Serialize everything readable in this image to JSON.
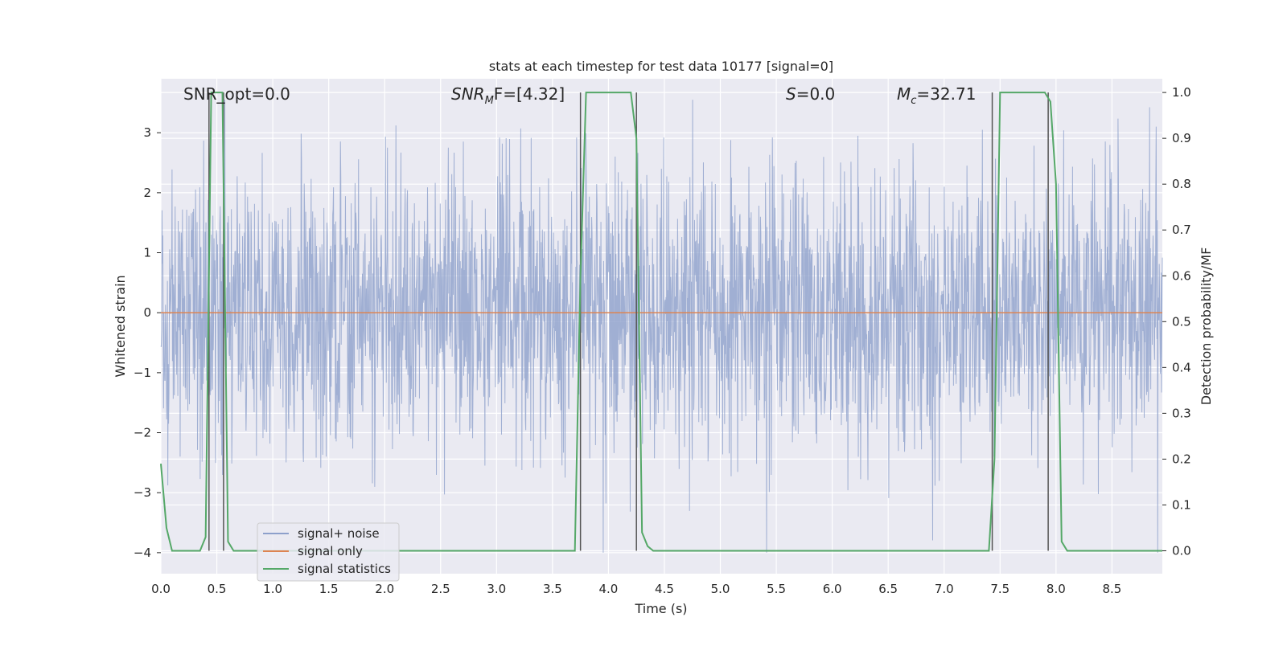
{
  "chart_data": {
    "type": "line",
    "title": "stats at each timestep for test data 10177 [signal=0]",
    "xlabel": "Time (s)",
    "ylabel_left": "Whitened strain",
    "ylabel_right": "Detection probability/MF",
    "xlim": [
      0.0,
      8.95
    ],
    "ylim_left": [
      -4.35,
      3.9
    ],
    "ylim_right": [
      -0.05,
      1.03
    ],
    "x_ticks": [
      "0.0",
      "0.5",
      "1.0",
      "1.5",
      "2.0",
      "2.5",
      "3.0",
      "3.5",
      "4.0",
      "4.5",
      "5.0",
      "5.5",
      "6.0",
      "6.5",
      "7.0",
      "7.5",
      "8.0",
      "8.5"
    ],
    "y_ticks_left": [
      "3",
      "2",
      "1",
      "0",
      "−1",
      "−2",
      "−3",
      "−4"
    ],
    "y_ticks_right": [
      "1.0",
      "0.9",
      "0.8",
      "0.7",
      "0.6",
      "0.5",
      "0.4",
      "0.3",
      "0.2",
      "0.1",
      "0.0"
    ],
    "grid": true,
    "legend_position": "lower-left",
    "annotations": {
      "snr_opt": "SNR_opt=0.0",
      "snr_mf_prefix": "SNR",
      "snr_mf_sub": "M",
      "snr_mf_suffix": "F=[4.32]",
      "s_prefix": "S",
      "s_suffix": "=0.0",
      "mc_prefix": "M",
      "mc_sub": "c",
      "mc_suffix": "=32.71"
    },
    "series": [
      {
        "name": "signal+ noise",
        "axis": "left",
        "color": "#8da0cb",
        "note": "whitened noise, approx gaussian, values mostly within -4 to 3.5",
        "envelope": {
          "x": [
            0.0,
            8.95
          ],
          "ymin": -4.0,
          "ymax": 3.55
        }
      },
      {
        "name": "signal only",
        "axis": "left",
        "color": "#dd8452",
        "x": [
          0.0,
          8.95
        ],
        "y": [
          0.0,
          0.0
        ]
      },
      {
        "name": "signal statistics",
        "axis": "right",
        "color": "#55a868",
        "x": [
          0.0,
          0.05,
          0.1,
          0.15,
          0.2,
          0.25,
          0.3,
          0.35,
          0.4,
          0.45,
          0.5,
          0.55,
          0.6,
          0.65,
          0.7,
          0.8,
          3.5,
          3.7,
          3.75,
          3.8,
          4.2,
          4.25,
          4.3,
          4.35,
          4.4,
          7.3,
          7.4,
          7.45,
          7.5,
          7.9,
          7.95,
          8.0,
          8.05,
          8.1,
          8.95
        ],
        "y": [
          0.19,
          0.05,
          0.0,
          0.0,
          0.0,
          0.0,
          0.0,
          0.0,
          0.03,
          1.0,
          1.0,
          1.0,
          0.02,
          0.0,
          0.0,
          0.0,
          0.0,
          0.0,
          0.6,
          1.0,
          1.0,
          0.9,
          0.04,
          0.01,
          0.0,
          0.0,
          0.0,
          0.2,
          1.0,
          1.0,
          0.98,
          0.8,
          0.02,
          0.0,
          0.0
        ]
      }
    ],
    "vertical_markers_x": [
      0.43,
      0.56,
      3.75,
      4.25,
      7.43,
      7.93
    ],
    "marker_color": "#555555"
  }
}
